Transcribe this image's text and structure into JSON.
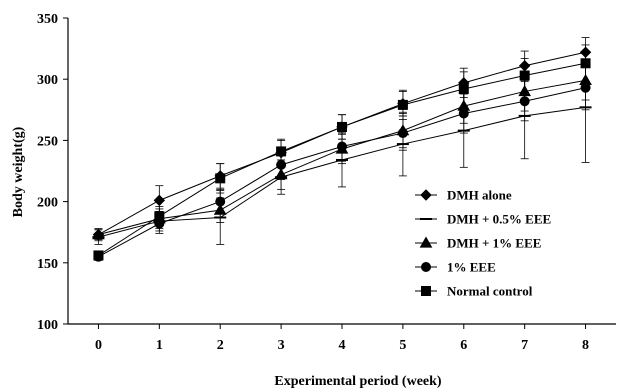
{
  "chart_data": {
    "type": "line",
    "title": "",
    "xlabel": "Experimental period (week)",
    "ylabel": "Body weight(g)",
    "x": [
      0,
      1,
      2,
      3,
      4,
      5,
      6,
      7,
      8
    ],
    "xlim": [
      -0.5,
      8.5
    ],
    "ylim": [
      100,
      350
    ],
    "yticks": [
      100,
      150,
      200,
      250,
      300,
      350
    ],
    "grid": false,
    "legend_position": "bottom-right",
    "series": [
      {
        "name": "DMH alone",
        "marker": "diamond",
        "values": [
          173,
          201,
          221,
          240,
          261,
          280,
          297,
          311,
          322
        ],
        "error": [
          5,
          12,
          10,
          10,
          10,
          10,
          12,
          12,
          12
        ]
      },
      {
        "name": "DMH + 0.5% EEE",
        "marker": "dash",
        "values": [
          171,
          184,
          187,
          220,
          234,
          247,
          258,
          270,
          277
        ],
        "error": [
          6,
          8,
          22,
          14,
          22,
          26,
          30,
          35,
          45
        ]
      },
      {
        "name": "DMH +  1% EEE",
        "marker": "triangle",
        "values": [
          173,
          186,
          193,
          222,
          243,
          258,
          278,
          290,
          299
        ],
        "error": [
          4,
          8,
          10,
          12,
          12,
          14,
          14,
          16,
          16
        ]
      },
      {
        "name": "1% EEE",
        "marker": "circle",
        "values": [
          155,
          182,
          200,
          230,
          245,
          256,
          272,
          282,
          293
        ],
        "error": [
          3,
          8,
          10,
          12,
          12,
          14,
          16,
          16,
          18
        ]
      },
      {
        "name": "Normal control",
        "marker": "square",
        "values": [
          156,
          188,
          219,
          241,
          261,
          279,
          292,
          303,
          313
        ],
        "error": [
          3,
          8,
          12,
          10,
          10,
          12,
          14,
          14,
          15
        ]
      }
    ]
  }
}
